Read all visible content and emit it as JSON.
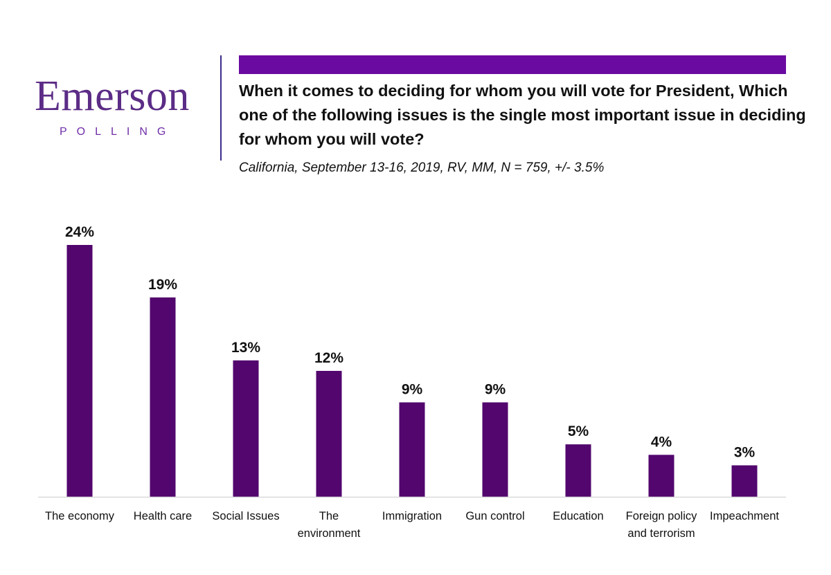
{
  "logo": {
    "name": "Emerson",
    "sub": "POLLING"
  },
  "header": {
    "question": "When it comes to deciding for whom you will vote for President, Which one of the following issues is the single most important issue in deciding for whom you will vote?",
    "subtitle": "California, September 13-16, 2019, RV, MM, N = 759,  +/- 3.5%"
  },
  "colors": {
    "bar": "#52066e",
    "accent": "#6b0aa0",
    "logo": "#5b2c86"
  },
  "chart_data": {
    "type": "bar",
    "categories": [
      "The economy",
      "Health care",
      "Social Issues",
      "The environment",
      "Immigration",
      "Gun control",
      "Education",
      "Foreign policy and terrorism",
      "Impeachment"
    ],
    "category_lines": [
      [
        "The economy"
      ],
      [
        "Health care"
      ],
      [
        "Social Issues"
      ],
      [
        "The",
        "environment"
      ],
      [
        "Immigration"
      ],
      [
        "Gun control"
      ],
      [
        "Education"
      ],
      [
        "Foreign policy",
        "and terrorism"
      ],
      [
        "Impeachment"
      ]
    ],
    "values": [
      24,
      19,
      13,
      12,
      9,
      9,
      5,
      4,
      3
    ],
    "data_labels": [
      "24%",
      "19%",
      "13%",
      "12%",
      "9%",
      "9%",
      "5%",
      "4%",
      "3%"
    ],
    "ylim": [
      0,
      24
    ],
    "grid": false,
    "legend": "none"
  }
}
